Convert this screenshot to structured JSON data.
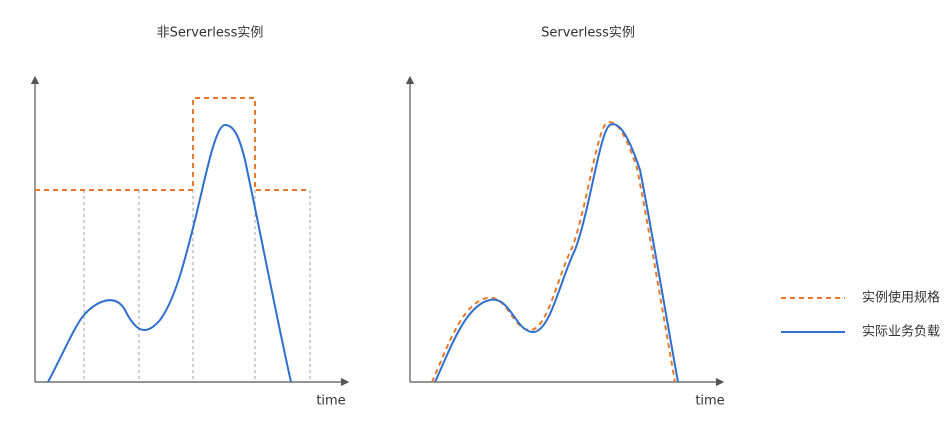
{
  "panels": [
    {
      "title": "非Serverless实例",
      "x_label": "time"
    },
    {
      "title": "Serverless实例",
      "x_label": "time"
    }
  ],
  "legend": [
    "实例使用规格",
    "实际业务负载"
  ]
}
